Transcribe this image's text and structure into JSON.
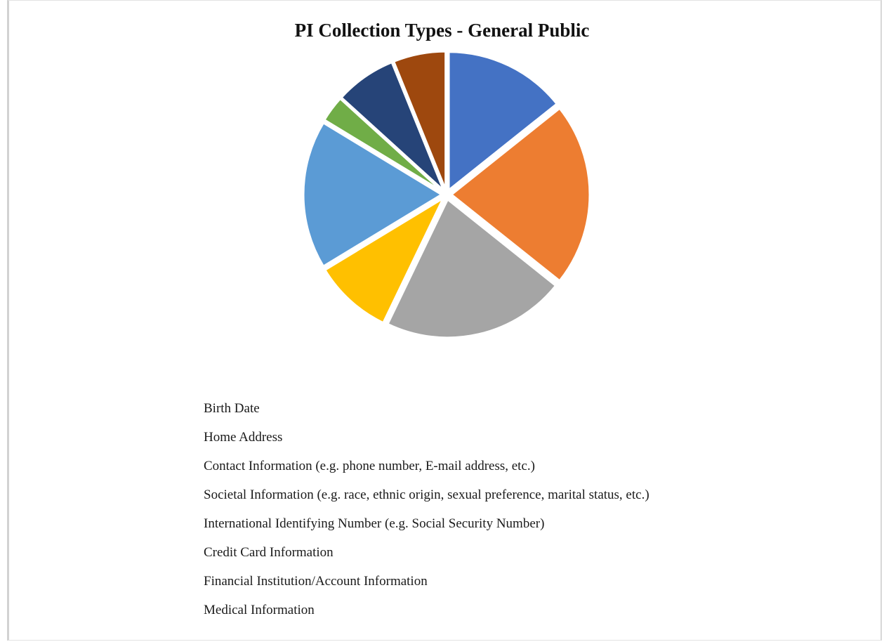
{
  "chart_data": {
    "type": "pie",
    "title": "PI Collection Types - General Public",
    "categories": [
      "Birth Date",
      "Home Address",
      "Contact Information (e.g. phone number, E-mail address, etc.)",
      "Societal Information (e.g. race, ethnic origin, sexual preference, marital status, etc.)",
      "International Identifying Number (e.g. Social Security Number)",
      "Credit Card Information",
      "Financial Institution/Account Information",
      "Medical Information"
    ],
    "values": [
      14,
      21,
      21,
      9,
      17,
      3,
      7,
      6
    ],
    "colors": [
      "#4472c4",
      "#ed7d31",
      "#a5a5a5",
      "#ffc000",
      "#5b9bd5",
      "#70ad47",
      "#264478",
      "#9e480e"
    ],
    "exploded": true,
    "legend": "below, labels only"
  }
}
